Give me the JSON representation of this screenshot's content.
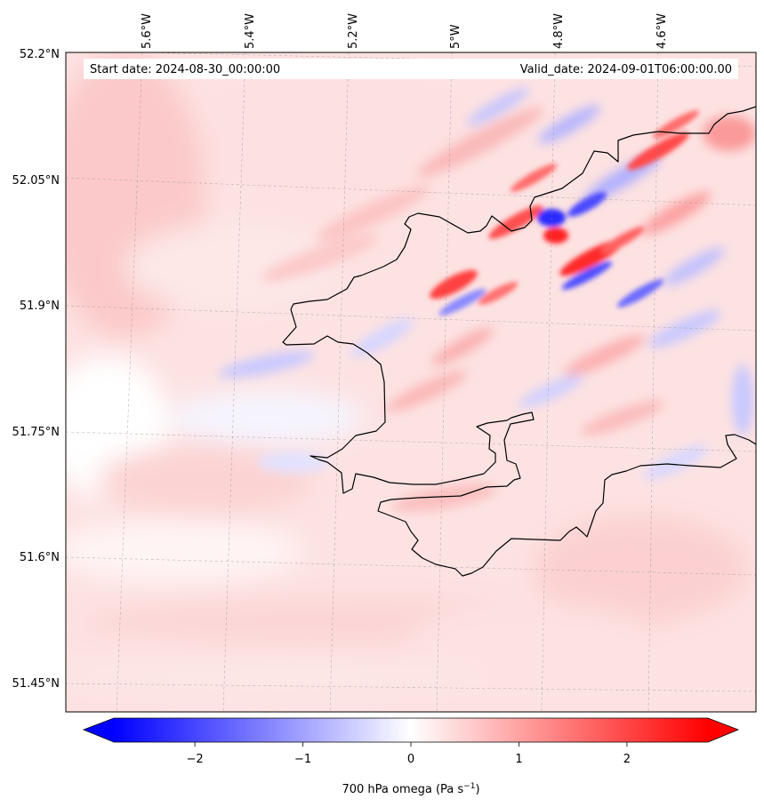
{
  "header": {
    "start_date": "Start date: 2024-08-30_00:00:00",
    "valid_date": "Valid_date: 2024-09-01T06:00:00.00"
  },
  "map": {
    "lon_ticks": [
      "5.6°W",
      "5.4°W",
      "5.2°W",
      "5°W",
      "4.8°W",
      "4.6°W"
    ],
    "lat_ticks": [
      "52.2°N",
      "52.05°N",
      "51.9°N",
      "51.75°N",
      "51.6°N",
      "51.45°N"
    ],
    "field": "700 hPa omega",
    "coastline_color": "#000000"
  },
  "colorbar": {
    "label_main": "700 hPa omega (Pa s",
    "label_exp": "−1",
    "label_close": ")",
    "ticks": [
      "−2",
      "−1",
      "0",
      "1",
      "2"
    ],
    "range": [
      -2.75,
      2.75
    ],
    "colormap": "bwr",
    "low_color": "#0000ff",
    "mid_color": "#ffffff",
    "high_color": "#ff0000",
    "extend": "both"
  }
}
